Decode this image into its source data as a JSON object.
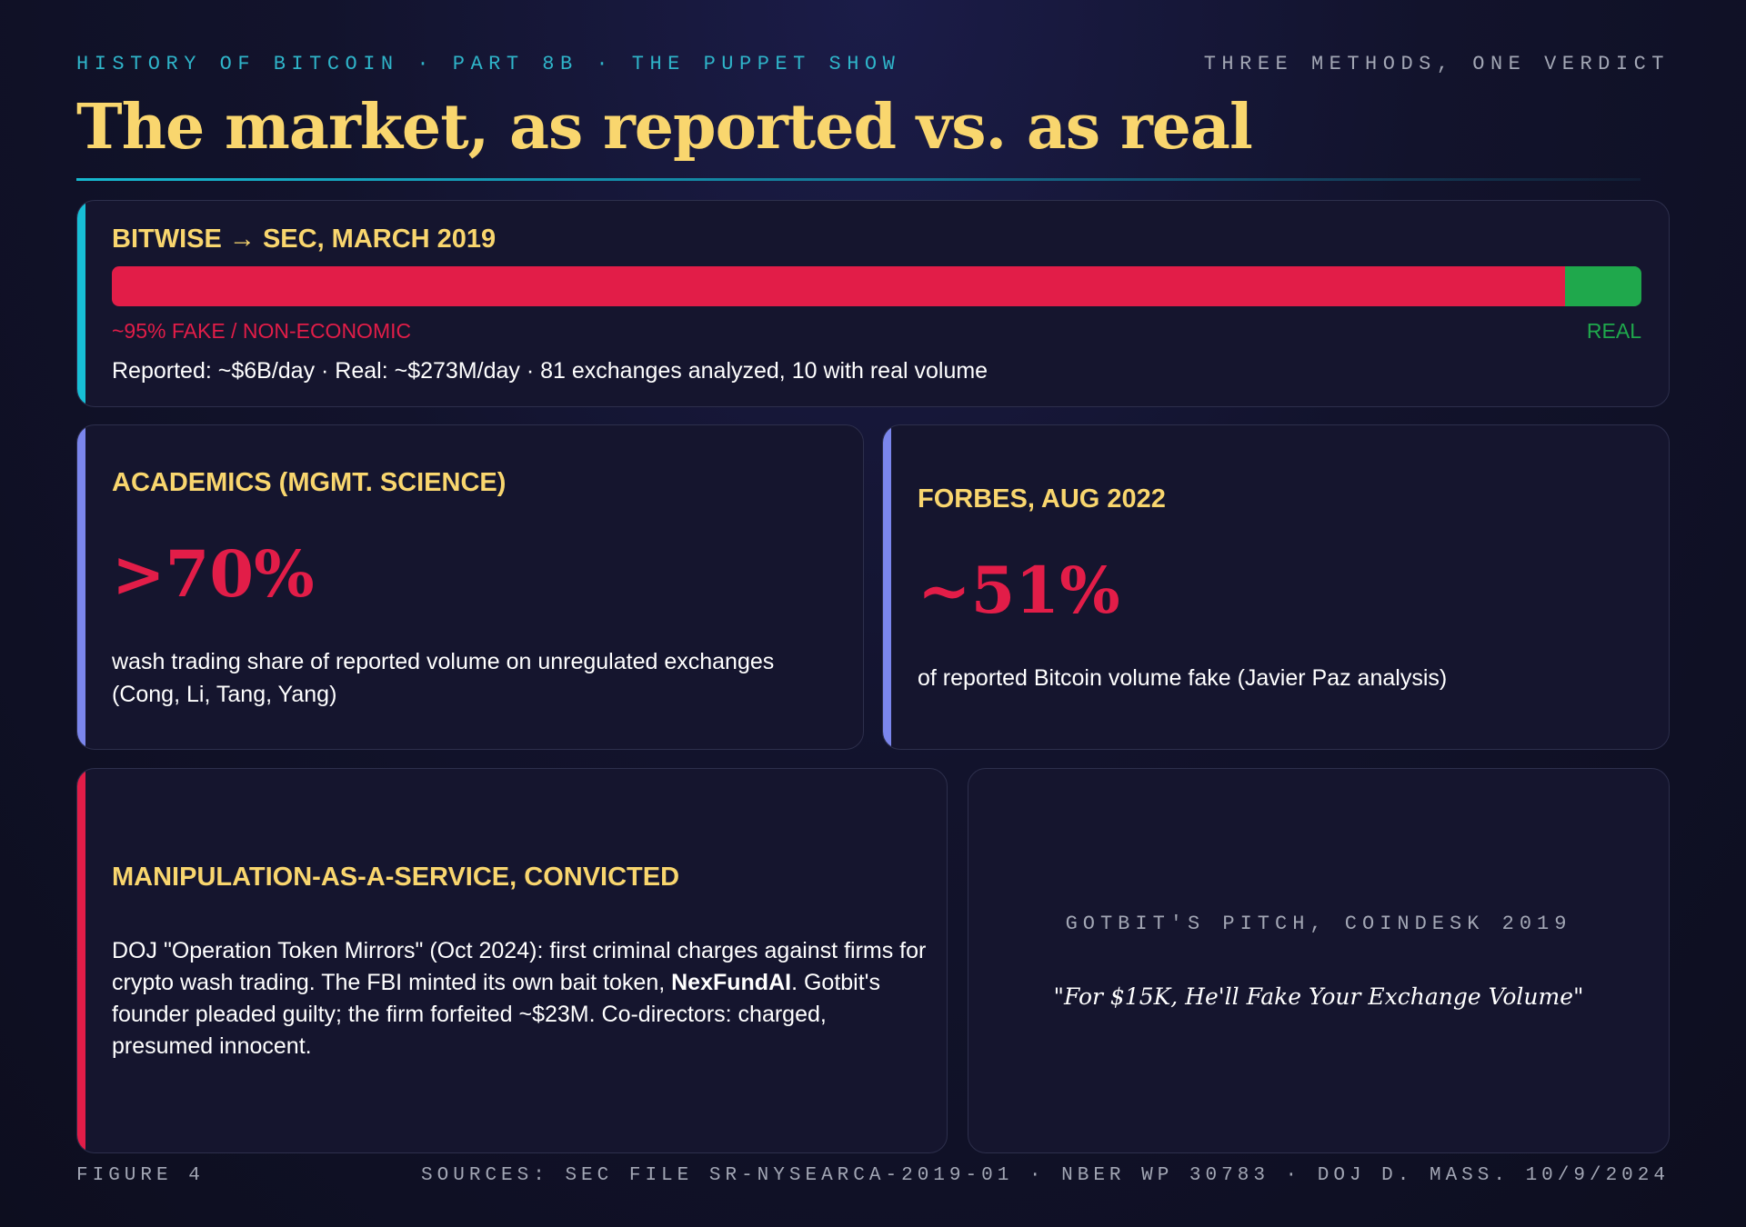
{
  "header": {
    "series_part1": "HISTORY OF BITCOIN",
    "series_part2": "PART 8B",
    "series_part3": "THE PUPPET SHOW",
    "separator": "·",
    "tagline": "THREE METHODS, ONE VERDICT",
    "title": "The market, as reported vs. as real"
  },
  "bitwise": {
    "heading": "BITWISE → SEC, MARCH 2019",
    "fake_fraction": 0.95,
    "fake_label": "~95% FAKE / NON-ECONOMIC",
    "real_label": "REAL",
    "detail": "Reported: ~$6B/day · Real: ~$273M/day · 81 exchanges analyzed, 10 with real volume",
    "colors": {
      "fake": "#e21d48",
      "real": "#1fa84c"
    }
  },
  "academics": {
    "heading": "ACADEMICS (MGMT. SCIENCE)",
    "stat": ">70%",
    "desc_line1": "wash trading share of reported volume on unregulated exchanges",
    "desc_line2": "(Cong, Li, Tang, Yang)"
  },
  "forbes": {
    "heading": "FORBES, AUG 2022",
    "stat": "~51%",
    "desc": "of reported Bitcoin volume fake (Javier Paz analysis)"
  },
  "manipulation": {
    "heading": "MANIPULATION-AS-A-SERVICE, CONVICTED",
    "text_before": "DOJ \"Operation Token Mirrors\" (Oct 2024): first criminal charges against firms for crypto wash trading. The FBI minted its own bait token, ",
    "text_bold": "NexFundAI",
    "text_after": ". Gotbit's founder pleaded guilty; the firm forfeited ~$23M. Co-directors: charged, presumed innocent."
  },
  "gotbit": {
    "kicker": "GOTBIT'S PITCH, COINDESK 2019",
    "quote": "\"For $15K, He'll Fake Your Exchange Volume\""
  },
  "footer": {
    "figure": "FIGURE 4",
    "sources": "SOURCES: SEC FILE SR-NYSEARCA-2019-01 · NBER WP 30783 · DOJ D. MASS. 10/9/2024"
  },
  "colors": {
    "accent_gold": "#f9d66e",
    "accent_red": "#e21d48",
    "accent_cyan": "#17bfd6",
    "accent_violet": "#7b86ec"
  }
}
